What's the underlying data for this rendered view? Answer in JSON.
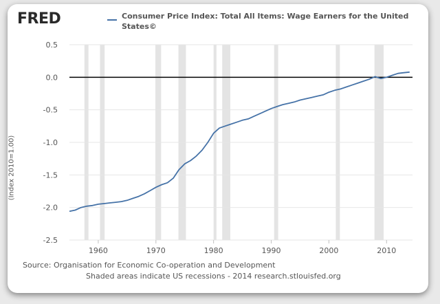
{
  "header": {
    "logo_text": "FRED",
    "legend_title": "Consumer Price Index: Total All Items: Wage Earners for the United States©"
  },
  "footer": {
    "source": "Source: Organisation for Economic Co-operation and Development",
    "note": "Shaded areas indicate US recessions - 2014 research.stlouisfed.org"
  },
  "colors": {
    "series": "#4572a7",
    "recession": "#e4e4e4",
    "zero_line": "#000000",
    "grid": "#e6e6e6",
    "axis_text": "#555555"
  },
  "chart_data": {
    "type": "line",
    "title": "",
    "xlabel": "",
    "ylabel": "(Index 2010=1.00)",
    "xlim": [
      1955,
      2014.5
    ],
    "ylim": [
      -2.5,
      0.5
    ],
    "x_ticks": [
      1960,
      1970,
      1980,
      1990,
      2000,
      2010
    ],
    "y_ticks": [
      0.5,
      0.0,
      -0.5,
      -1.0,
      -1.5,
      -2.0,
      -2.5
    ],
    "y_tick_labels": [
      "0.5",
      "0.0",
      "-0.5",
      "-1.0",
      "-1.5",
      "-2.0",
      "-2.5"
    ],
    "grid": "horizontal",
    "zero_line": 0.0,
    "recessions": [
      [
        1957.6,
        1958.3
      ],
      [
        1960.3,
        1961.1
      ],
      [
        1969.9,
        1970.9
      ],
      [
        1973.9,
        1975.2
      ],
      [
        1980.0,
        1980.5
      ],
      [
        1981.5,
        1982.9
      ],
      [
        1990.5,
        1991.2
      ],
      [
        2001.2,
        2001.9
      ],
      [
        2007.9,
        2009.5
      ]
    ],
    "series": [
      {
        "name": "Consumer Price Index: Total All Items: Wage Earners for the United States©",
        "x": [
          1955,
          1956,
          1957,
          1958,
          1959,
          1960,
          1961,
          1962,
          1963,
          1964,
          1965,
          1966,
          1967,
          1968,
          1969,
          1970,
          1971,
          1972,
          1973,
          1974,
          1975,
          1976,
          1977,
          1978,
          1979,
          1980,
          1981,
          1982,
          1983,
          1984,
          1985,
          1986,
          1987,
          1988,
          1989,
          1990,
          1991,
          1992,
          1993,
          1994,
          1995,
          1996,
          1997,
          1998,
          1999,
          2000,
          2001,
          2002,
          2003,
          2004,
          2005,
          2006,
          2007,
          2008,
          2009,
          2010,
          2011,
          2012,
          2013,
          2014
        ],
        "values": [
          -2.06,
          -2.04,
          -2.0,
          -1.98,
          -1.97,
          -1.95,
          -1.94,
          -1.93,
          -1.92,
          -1.91,
          -1.89,
          -1.86,
          -1.83,
          -1.79,
          -1.74,
          -1.69,
          -1.65,
          -1.62,
          -1.55,
          -1.42,
          -1.33,
          -1.28,
          -1.21,
          -1.12,
          -1.0,
          -0.86,
          -0.78,
          -0.75,
          -0.72,
          -0.69,
          -0.66,
          -0.64,
          -0.6,
          -0.56,
          -0.52,
          -0.48,
          -0.45,
          -0.42,
          -0.4,
          -0.38,
          -0.35,
          -0.33,
          -0.31,
          -0.29,
          -0.27,
          -0.23,
          -0.2,
          -0.18,
          -0.15,
          -0.12,
          -0.09,
          -0.06,
          -0.03,
          0.01,
          -0.02,
          0.0,
          0.03,
          0.06,
          0.07,
          0.08
        ]
      }
    ]
  }
}
